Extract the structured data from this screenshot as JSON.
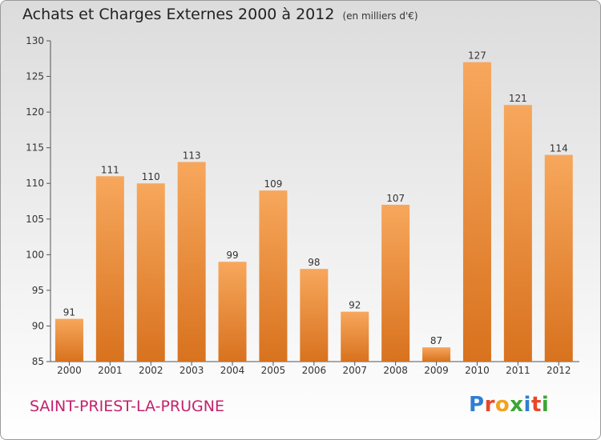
{
  "header": {
    "title": "Achats et Charges Externes 2000 à 2012",
    "unit": "(en milliers d'€)"
  },
  "footer": {
    "commune": "SAINT-PRIEST-LA-PRUGNE",
    "logo_text": "Proxiti"
  },
  "colors": {
    "bar_light": "#f7a75c",
    "bar_dark": "#d8721e",
    "commune_text": "#c4216e"
  },
  "chart_data": {
    "type": "bar",
    "title": "Achats et Charges Externes 2000 à 2012",
    "xlabel": "",
    "ylabel": "",
    "categories": [
      "2000",
      "2001",
      "2002",
      "2003",
      "2004",
      "2005",
      "2006",
      "2007",
      "2008",
      "2009",
      "2010",
      "2011",
      "2012"
    ],
    "values": [
      91,
      111,
      110,
      113,
      99,
      109,
      98,
      92,
      107,
      87,
      127,
      121,
      114
    ],
    "ylim": [
      85,
      130
    ],
    "yticks": [
      85,
      90,
      95,
      100,
      105,
      110,
      115,
      120,
      125,
      130
    ],
    "grid": false,
    "data_labels": true
  }
}
